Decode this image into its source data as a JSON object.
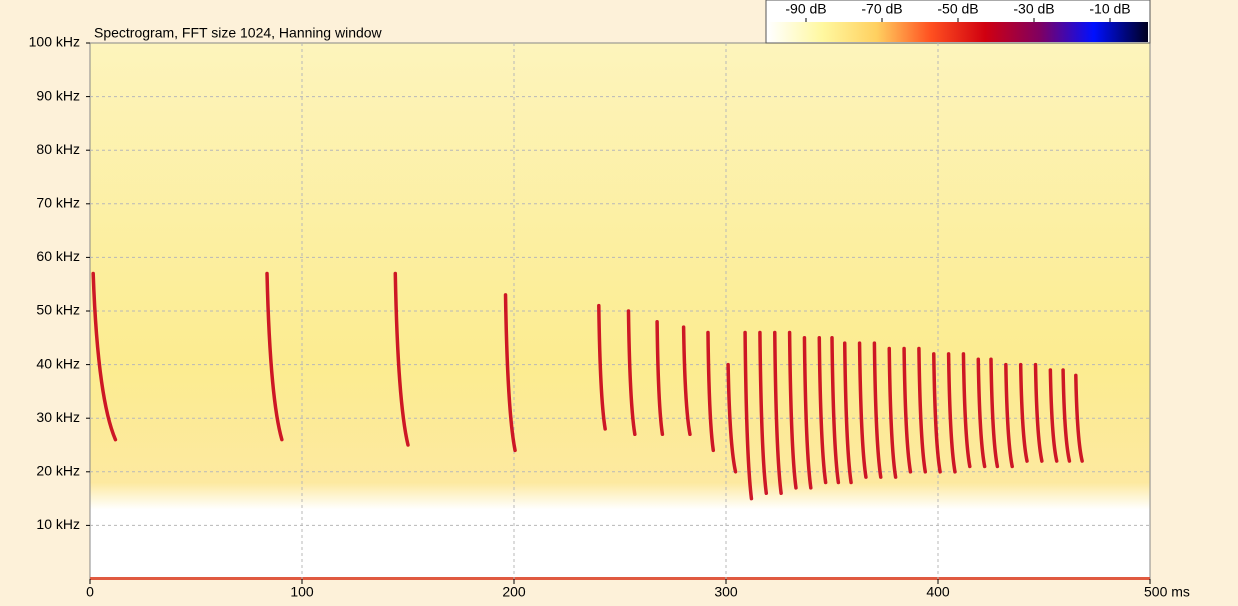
{
  "chart_data": {
    "type": "spectrogram",
    "title": "Spectrogram, FFT size 1024, Hanning window",
    "xlim": [
      0,
      500
    ],
    "xticks": [
      0,
      100,
      200,
      300,
      400,
      {
        "value": 500,
        "label": "500 ms"
      }
    ],
    "ylim": [
      0,
      100
    ],
    "yticks": [
      {
        "value": 10,
        "label": "10 kHz"
      },
      {
        "value": 20,
        "label": "20 kHz"
      },
      {
        "value": 30,
        "label": "30 kHz"
      },
      {
        "value": 40,
        "label": "40 kHz"
      },
      {
        "value": 50,
        "label": "50 kHz"
      },
      {
        "value": 60,
        "label": "60 kHz"
      },
      {
        "value": 70,
        "label": "70 kHz"
      },
      {
        "value": 80,
        "label": "80 kHz"
      },
      {
        "value": 90,
        "label": "90 kHz"
      },
      {
        "value": 100,
        "label": "100 kHz"
      }
    ],
    "grid": true,
    "colorbar": {
      "clim": [
        -100,
        0
      ],
      "ticks": [
        {
          "value": -90,
          "label": "-90 dB"
        },
        {
          "value": -70,
          "label": "-70 dB"
        },
        {
          "value": -50,
          "label": "-50 dB"
        },
        {
          "value": -30,
          "label": "-30 dB"
        },
        {
          "value": -10,
          "label": "-10 dB"
        }
      ],
      "colors": [
        "#ffffff",
        "#fff8a0",
        "#ffd060",
        "#ff5020",
        "#d00010",
        "#800060",
        "#0010ff",
        "#000020"
      ]
    },
    "pulses": {
      "color": "#c80018",
      "t_start": [
        1.5,
        83.5,
        144,
        196,
        240,
        254,
        267.5,
        280,
        291.5,
        301,
        309,
        316,
        323,
        330,
        337,
        344,
        350,
        356,
        363,
        370,
        377,
        384,
        391,
        398,
        405,
        412,
        419,
        425,
        432,
        439,
        446,
        453,
        459,
        465
      ],
      "t_end": [
        12,
        90.5,
        150,
        200.5,
        243,
        257,
        270,
        283,
        294,
        304.5,
        312,
        319,
        326,
        333,
        340,
        347,
        353,
        359,
        366,
        373,
        380,
        387,
        394,
        401,
        408,
        415,
        422,
        428,
        435,
        442,
        449,
        456,
        462,
        468
      ],
      "f_high": [
        57,
        57,
        57,
        53,
        51,
        50,
        48,
        47,
        46,
        40,
        46,
        46,
        46,
        46,
        45,
        45,
        45,
        44,
        44,
        44,
        43,
        43,
        43,
        42,
        42,
        42,
        41,
        41,
        40,
        40,
        40,
        39,
        39,
        38
      ],
      "f_low": [
        26,
        26,
        25,
        24,
        28,
        27,
        27,
        27,
        24,
        20,
        15,
        16,
        16,
        17,
        17,
        18,
        18,
        18,
        19,
        19,
        19,
        20,
        20,
        20,
        20,
        21,
        21,
        21,
        21,
        22,
        22,
        22,
        22,
        22
      ]
    }
  }
}
